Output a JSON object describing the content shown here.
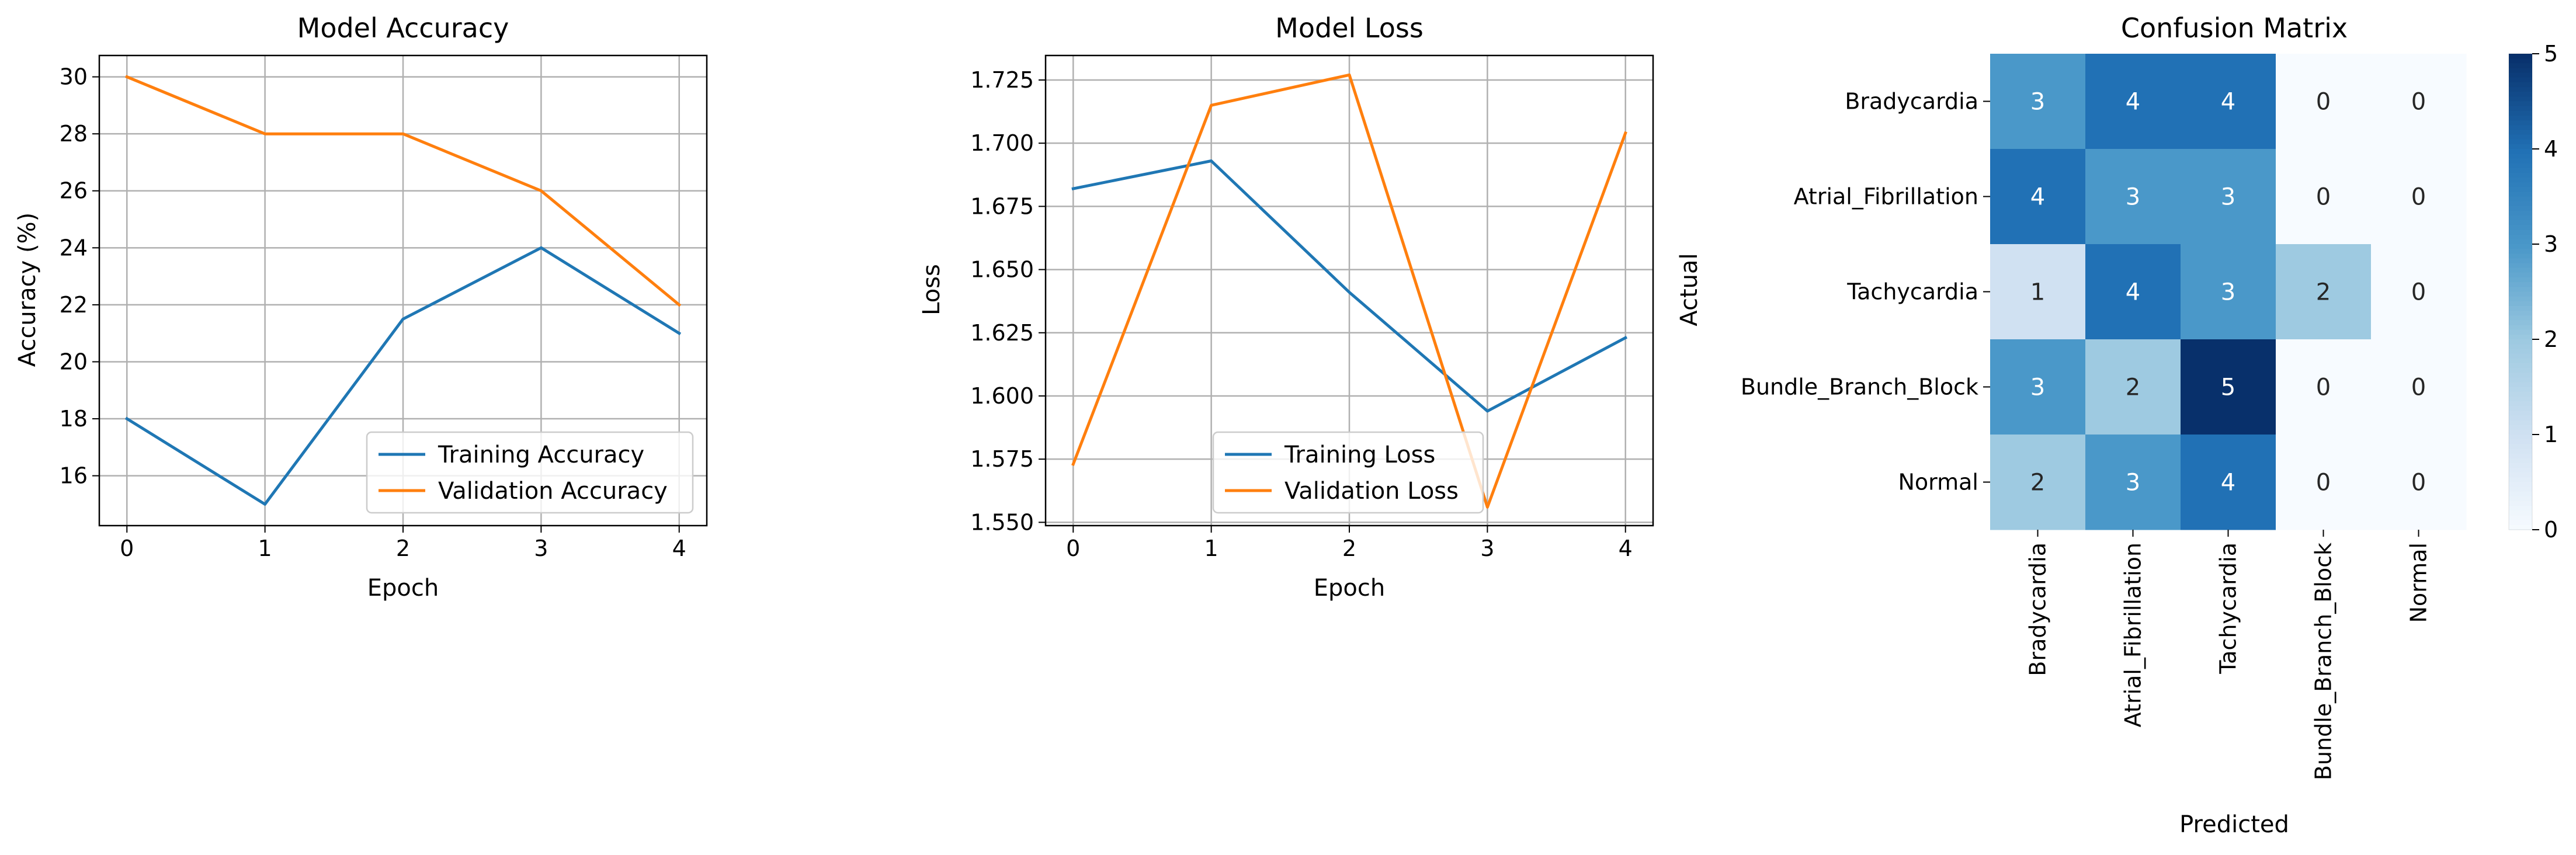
{
  "chart_data": [
    {
      "type": "line",
      "title": "Model Accuracy",
      "xlabel": "Epoch",
      "ylabel": "Accuracy (%)",
      "x": [
        0,
        1,
        2,
        3,
        4
      ],
      "xticks": [
        "0",
        "1",
        "2",
        "3",
        "4"
      ],
      "yticks": [
        "16",
        "18",
        "20",
        "22",
        "24",
        "26",
        "28",
        "30"
      ],
      "xlim": [
        -0.2,
        4.2
      ],
      "ylim": [
        14.25,
        30.75
      ],
      "grid": true,
      "legend_placement": "lower-right",
      "series": [
        {
          "name": "Training Accuracy",
          "color": "#1f77b4",
          "values": [
            18,
            15,
            21.5,
            24,
            21
          ]
        },
        {
          "name": "Validation Accuracy",
          "color": "#ff7f0e",
          "values": [
            30,
            28,
            28,
            26,
            22
          ]
        }
      ]
    },
    {
      "type": "line",
      "title": "Model Loss",
      "xlabel": "Epoch",
      "ylabel": "Loss",
      "x": [
        0,
        1,
        2,
        3,
        4
      ],
      "xticks": [
        "0",
        "1",
        "2",
        "3",
        "4"
      ],
      "yticks": [
        "1.550",
        "1.575",
        "1.600",
        "1.625",
        "1.650",
        "1.675",
        "1.700",
        "1.725"
      ],
      "xlim": [
        -0.2,
        4.2
      ],
      "ylim": [
        1.5487,
        1.7347
      ],
      "grid": true,
      "legend_placement": "lower-center",
      "series": [
        {
          "name": "Training Loss",
          "color": "#1f77b4",
          "values": [
            1.682,
            1.693,
            1.641,
            1.594,
            1.623
          ]
        },
        {
          "name": "Validation Loss",
          "color": "#ff7f0e",
          "values": [
            1.573,
            1.715,
            1.727,
            1.556,
            1.704
          ]
        }
      ]
    },
    {
      "type": "heatmap",
      "title": "Confusion Matrix",
      "xlabel": "Predicted",
      "ylabel": "Actual",
      "rows": [
        "Bradycardia",
        "Atrial_Fibrillation",
        "Tachycardia",
        "Bundle_Branch_Block",
        "Normal"
      ],
      "cols": [
        "Bradycardia",
        "Atrial_Fibrillation",
        "Tachycardia",
        "Bundle_Branch_Block",
        "Normal"
      ],
      "values": [
        [
          3,
          4,
          4,
          0,
          0
        ],
        [
          4,
          3,
          3,
          0,
          0
        ],
        [
          1,
          4,
          3,
          2,
          0
        ],
        [
          3,
          2,
          5,
          0,
          0
        ],
        [
          2,
          3,
          4,
          0,
          0
        ]
      ],
      "colormap": "Blues",
      "vmin": 0,
      "vmax": 5,
      "colorbar_ticks": [
        "0",
        "1",
        "2",
        "3",
        "4",
        "5"
      ]
    }
  ]
}
